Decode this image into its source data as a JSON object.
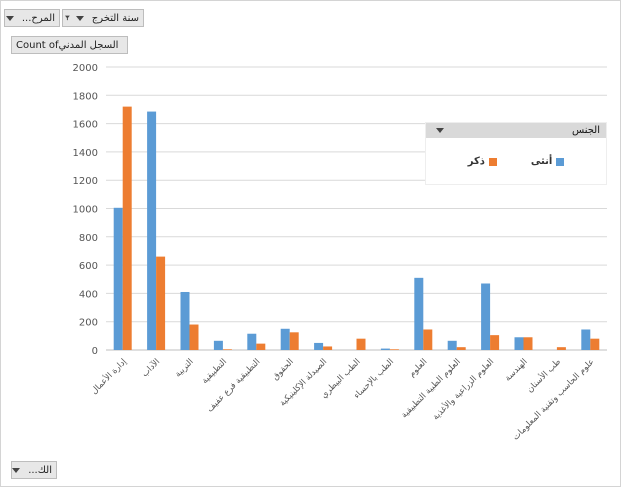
{
  "filters": {
    "year_label": "سنة التخرج",
    "stage_label": "المرح...",
    "value_field_label": "Count ofالسجل المدني",
    "axis_field_label": "الك..."
  },
  "legend": {
    "title": "الجنس",
    "items": [
      {
        "name": "أنثى",
        "color": "#5b9bd5"
      },
      {
        "name": "ذكر",
        "color": "#ed7d31"
      }
    ]
  },
  "chart_data": {
    "type": "bar",
    "ylim": [
      0,
      2000
    ],
    "yticks": [
      0,
      200,
      400,
      600,
      800,
      1000,
      1200,
      1400,
      1600,
      1800,
      2000
    ],
    "grid": true,
    "legend_position": "right",
    "categories": [
      "إدارة الأعمال",
      "الآداب",
      "التربية",
      "التطبيقية",
      "التطبيقية فرع عفيف",
      "الحقوق",
      "الصيدلة الإكلينيكية",
      "الطب البيطري",
      "الطب بالإحساء",
      "العلوم",
      "العلوم الطبية التطبيقية",
      "العلوم الزراعية والأغذية",
      "الهندسة",
      "طب الأسنان",
      "علوم الحاسب وتقنية المعلومات"
    ],
    "series": [
      {
        "name": "أنثى",
        "color": "#5b9bd5",
        "values": [
          1005,
          1685,
          410,
          65,
          115,
          150,
          50,
          0,
          10,
          510,
          65,
          470,
          90,
          0,
          145
        ]
      },
      {
        "name": "ذكر",
        "color": "#ed7d31",
        "values": [
          1720,
          660,
          180,
          5,
          45,
          125,
          25,
          80,
          5,
          145,
          20,
          105,
          90,
          20,
          80
        ]
      }
    ]
  }
}
